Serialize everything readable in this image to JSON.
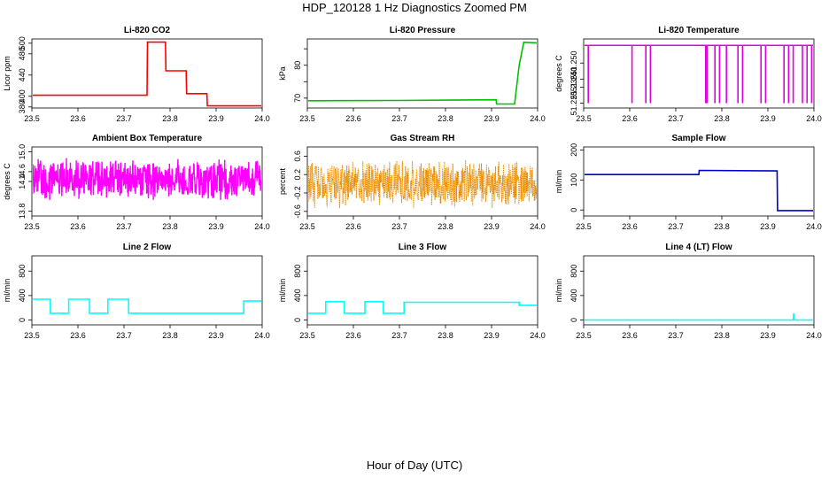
{
  "figure": {
    "title": "HDP_120128  1 Hz Diagnostics Zoomed PM",
    "xlabel": "Hour of Day (UTC)"
  },
  "chart_data": [
    {
      "type": "line",
      "title": "Li-820 CO2",
      "xlabel": "",
      "ylabel": "Licor ppm",
      "xlim": [
        23.5,
        24.0
      ],
      "ylim": [
        378,
        508
      ],
      "grid": false,
      "color": "#ff0000",
      "xticks": [
        "23.5",
        "23.6",
        "23.7",
        "23.8",
        "23.9",
        "24.0"
      ],
      "yticks": [
        380,
        400,
        440,
        480,
        500
      ],
      "yticks_label": [
        "380",
        "400",
        "440",
        "480",
        "500"
      ],
      "series": [
        {
          "name": "",
          "x": [
            23.5,
            23.75,
            23.751,
            23.79,
            23.791,
            23.835,
            23.836,
            23.88,
            23.881,
            24.0
          ],
          "y": [
            402,
            402,
            502,
            502,
            448,
            448,
            405,
            405,
            382,
            382
          ]
        }
      ]
    },
    {
      "type": "line",
      "title": "Li-820 Pressure",
      "xlabel": "",
      "ylabel": "kPa",
      "xlim": [
        23.5,
        24.0
      ],
      "ylim": [
        67,
        88
      ],
      "grid": false,
      "color": "#00c000",
      "xticks": [
        "23.5",
        "23.6",
        "23.7",
        "23.8",
        "23.9",
        "24.0"
      ],
      "yticks": [
        70,
        75,
        80,
        85
      ],
      "yticks_label": [
        "70",
        "",
        "80",
        ""
      ],
      "series": [
        {
          "name": "",
          "x": [
            23.5,
            23.7,
            23.91,
            23.911,
            23.95,
            23.96,
            23.97,
            24.0
          ],
          "y": [
            69.2,
            69.3,
            69.5,
            68.2,
            68.2,
            80,
            87,
            86.8
          ]
        }
      ]
    },
    {
      "type": "line",
      "title": "Li-820 Temperature",
      "xlabel": "",
      "ylabel": "degrees C",
      "xlim": [
        23.5,
        24.0
      ],
      "ylim": [
        51.222,
        51.265
      ],
      "grid": false,
      "color": "#e000e0",
      "xticks": [
        "23.5",
        "23.6",
        "23.7",
        "23.8",
        "23.9",
        "24.0"
      ],
      "yticks": [
        51.225,
        51.235,
        51.24,
        51.25
      ],
      "yticks_label": [
        "51.225",
        "51.235",
        "51.240",
        "51.250"
      ],
      "baseline": 51.261,
      "dips": [
        23.51,
        23.605,
        23.635,
        23.645,
        23.765,
        23.768,
        23.785,
        23.795,
        23.81,
        23.835,
        23.845,
        23.885,
        23.895,
        23.935,
        23.945,
        23.955,
        23.975,
        23.985,
        23.995
      ],
      "dip_value": 51.225
    },
    {
      "type": "line",
      "title": "Ambient Box Temperature",
      "xlabel": "",
      "ylabel": "degrees C",
      "xlim": [
        23.5,
        24.0
      ],
      "ylim": [
        13.7,
        15.1
      ],
      "grid": false,
      "color": "#ff00ff",
      "xticks": [
        "23.5",
        "23.6",
        "23.7",
        "23.8",
        "23.9",
        "24.0"
      ],
      "yticks": [
        13.8,
        14.4,
        14.6,
        15.0
      ],
      "yticks_label": [
        "13.8",
        "14.4",
        "14.6",
        "15.0"
      ],
      "noise": {
        "center": 14.45,
        "amplitude": 0.45
      }
    },
    {
      "type": "line",
      "title": "Gas Stream RH",
      "xlabel": "",
      "ylabel": "percent",
      "xlim": [
        23.5,
        24.0
      ],
      "ylim": [
        -0.7,
        0.8
      ],
      "grid": false,
      "color": "#ff9900",
      "dots": true,
      "xticks": [
        "23.5",
        "23.6",
        "23.7",
        "23.8",
        "23.9",
        "24.0"
      ],
      "yticks": [
        -0.6,
        -0.2,
        0.2,
        0.6
      ],
      "yticks_label": [
        "-0.6",
        "-0.2",
        "0.2",
        "0.6"
      ],
      "noise": {
        "center": 0.0,
        "amplitude": 0.55
      }
    },
    {
      "type": "line",
      "title": "Sample Flow",
      "xlabel": "",
      "ylabel": "ml/min",
      "xlim": [
        23.5,
        24.0
      ],
      "ylim": [
        -20,
        210
      ],
      "grid": false,
      "color": "#0000cc",
      "xticks": [
        "23.5",
        "23.6",
        "23.7",
        "23.8",
        "23.9",
        "24.0"
      ],
      "yticks": [
        0,
        100,
        200
      ],
      "yticks_label": [
        "0",
        "100",
        "200"
      ],
      "series": [
        {
          "name": "",
          "x": [
            23.5,
            23.6,
            23.75,
            23.751,
            23.92,
            23.921,
            24.0
          ],
          "y": [
            118,
            118,
            118,
            132,
            130,
            -2,
            -2
          ]
        }
      ]
    },
    {
      "type": "line",
      "title": "Line 2 Flow",
      "xlabel": "",
      "ylabel": "ml/min",
      "xlim": [
        23.5,
        24.0
      ],
      "ylim": [
        -80,
        1050
      ],
      "grid": false,
      "color": "#00ffff",
      "xticks": [
        "23.5",
        "23.6",
        "23.7",
        "23.8",
        "23.9",
        "24.0"
      ],
      "yticks": [
        0,
        400,
        800
      ],
      "yticks_label": [
        "0",
        "400",
        "800"
      ],
      "series": [
        {
          "name": "",
          "x": [
            23.5,
            23.5,
            23.54,
            23.54,
            23.58,
            23.58,
            23.625,
            23.625,
            23.665,
            23.665,
            23.71,
            23.71,
            23.75,
            23.96,
            23.96,
            24.0
          ],
          "y": [
            110,
            340,
            340,
            110,
            110,
            340,
            340,
            110,
            110,
            340,
            340,
            110,
            110,
            110,
            310,
            310
          ]
        }
      ]
    },
    {
      "type": "line",
      "title": "Line 3 Flow",
      "xlabel": "",
      "ylabel": "ml/min",
      "xlim": [
        23.5,
        24.0
      ],
      "ylim": [
        -80,
        1050
      ],
      "grid": false,
      "color": "#00ffff",
      "xticks": [
        "23.5",
        "23.6",
        "23.7",
        "23.8",
        "23.9",
        "24.0"
      ],
      "yticks": [
        0,
        400,
        800
      ],
      "yticks_label": [
        "0",
        "400",
        "800"
      ],
      "series": [
        {
          "name": "",
          "x": [
            23.5,
            23.5,
            23.54,
            23.54,
            23.58,
            23.58,
            23.625,
            23.625,
            23.665,
            23.665,
            23.71,
            23.71,
            23.96,
            23.96,
            24.0
          ],
          "y": [
            280,
            110,
            110,
            300,
            300,
            110,
            110,
            300,
            300,
            110,
            110,
            290,
            290,
            240,
            240
          ]
        }
      ]
    },
    {
      "type": "line",
      "title": "Line 4 (LT) Flow",
      "xlabel": "",
      "ylabel": "ml/min",
      "xlim": [
        23.5,
        24.0
      ],
      "ylim": [
        -80,
        1050
      ],
      "grid": false,
      "color": "#00ffff",
      "xticks": [
        "23.5",
        "23.6",
        "23.7",
        "23.8",
        "23.9",
        "24.0"
      ],
      "yticks": [
        0,
        400,
        800
      ],
      "yticks_label": [
        "0",
        "400",
        "800"
      ],
      "series": [
        {
          "name": "",
          "x": [
            23.5,
            23.955,
            23.956,
            23.957,
            23.958,
            24.0
          ],
          "y": [
            0,
            0,
            110,
            0,
            0,
            0
          ]
        }
      ]
    }
  ]
}
